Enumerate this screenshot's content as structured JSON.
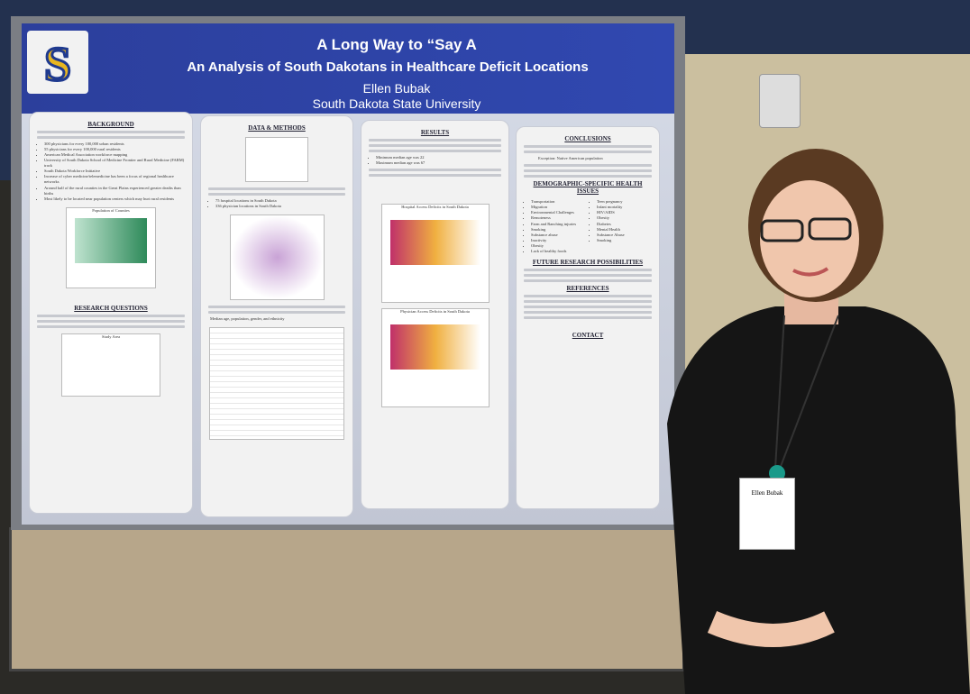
{
  "poster": {
    "title": "A Long Way to “Say A",
    "subtitle": "An Analysis of South Dakotans in Healthcare Deficit Locations",
    "author": "Ellen Bubak",
    "affiliation": "South Dakota State University",
    "background": {
      "heading": "BACKGROUND",
      "items": [
        "300 physicians for every 100,000 urban residents",
        "55 physicians for every 100,000 rural residents",
        "American Medical Association workforce mapping",
        "University of South Dakota School of Medicine Frontier and Rural Medicine (FARM) track",
        "South Dakota Workforce Initiative",
        "Increase of cyber medicine/telemedicine has been a focus of regional healthcare networks",
        "Around half of the rural counties in the Great Plains experienced greater deaths than births",
        "Most likely to be located near population centers which may hurt rural residents"
      ],
      "map_title": "Population of Counties"
    },
    "research_questions": {
      "heading": "RESEARCH QUESTIONS",
      "map_title": "Study Area"
    },
    "methods": {
      "heading": "DATA & METHODS",
      "items": [
        "75 hospital locations in South Dakota",
        "336 physician locations in South Dakota"
      ],
      "note": "Median age, population, gender, and ethnicity"
    },
    "results": {
      "heading": "RESULTS",
      "items": [
        "Minimum median age was 22",
        "Maximum median age was 67"
      ],
      "map1_title": "Hospital Access Deficits in South Dakota",
      "map2_title": "Physician Access Deficits in South Dakota"
    },
    "conclusions": {
      "heading": "CONCLUSIONS",
      "note": "Exception: Native American population"
    },
    "health_issues": {
      "heading": "DEMOGRAPHIC-SPECIFIC HEALTH ISSUES",
      "rural": [
        "Transportation",
        "Migration",
        "Environmental Challenges",
        "Remoteness",
        "Farm and Ranching injuries",
        "Smoking",
        "Substance abuse",
        "Inactivity",
        "Obesity",
        "Lack of healthy foods"
      ],
      "native": [
        "Teen pregnancy",
        "Infant mortality",
        "HIV/AIDS",
        "Obesity",
        "Diabetes",
        "Mental Health",
        "Substance Abuse",
        "Smoking"
      ]
    },
    "future": {
      "heading": "FUTURE RESEARCH POSSIBILITIES"
    },
    "references": {
      "heading": "REFERENCES"
    },
    "contact": {
      "heading": "CONTACT"
    }
  },
  "badge": {
    "name": "Ellen Bubak"
  }
}
